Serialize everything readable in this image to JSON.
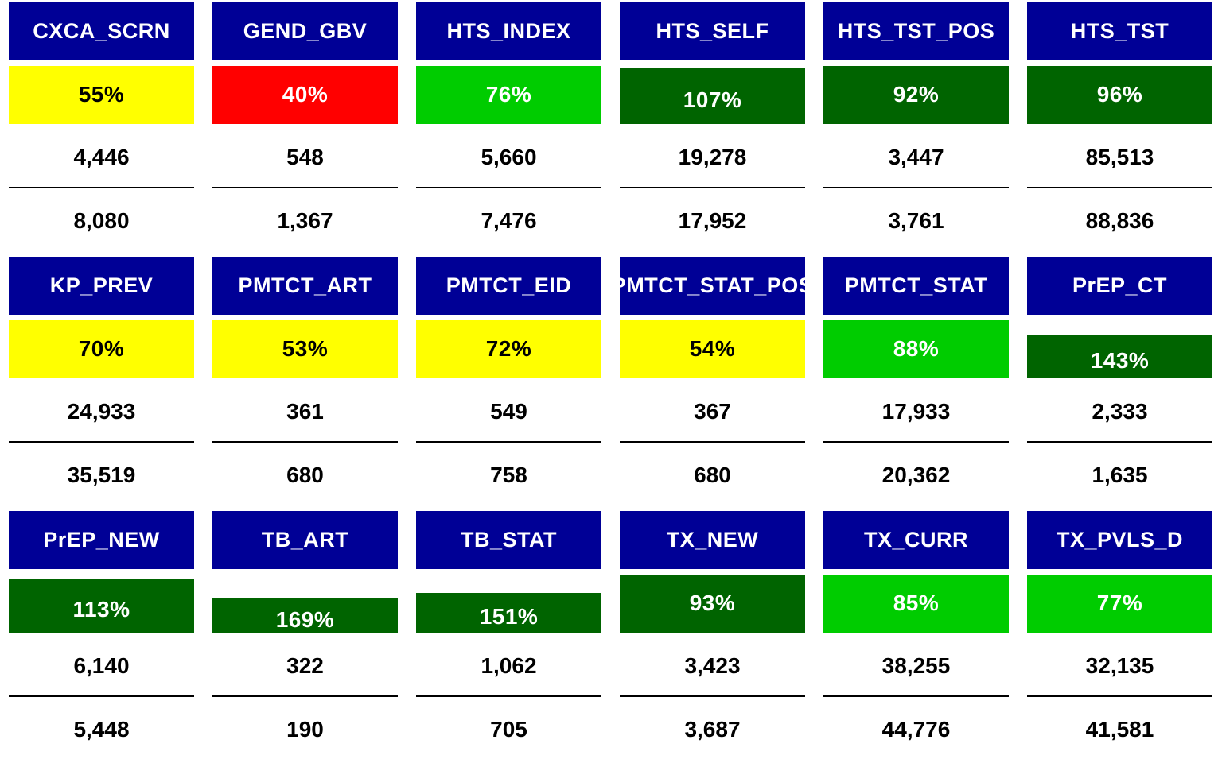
{
  "colors": {
    "header": "#000096",
    "yellow": "#ffff00",
    "red": "#ff0000",
    "light_green": "#00cc00",
    "dark_green": "#006400"
  },
  "chart_data": {
    "type": "table",
    "tiles": [
      {
        "indicator": "CXCA_SCRN",
        "achievement": "55%",
        "achievement_value": 55,
        "color": "yellow",
        "results": "4,446",
        "targets": "8,080"
      },
      {
        "indicator": "GEND_GBV",
        "achievement": "40%",
        "achievement_value": 40,
        "color": "red",
        "results": "548",
        "targets": "1,367"
      },
      {
        "indicator": "HTS_INDEX",
        "achievement": "76%",
        "achievement_value": 76,
        "color": "light_green",
        "results": "5,660",
        "targets": "7,476"
      },
      {
        "indicator": "HTS_SELF",
        "achievement": "107%",
        "achievement_value": 107,
        "color": "dark_green",
        "results": "19,278",
        "targets": "17,952"
      },
      {
        "indicator": "HTS_TST_POS",
        "achievement": "92%",
        "achievement_value": 92,
        "color": "dark_green",
        "results": "3,447",
        "targets": "3,761"
      },
      {
        "indicator": "HTS_TST",
        "achievement": "96%",
        "achievement_value": 96,
        "color": "dark_green",
        "results": "85,513",
        "targets": "88,836"
      },
      {
        "indicator": "KP_PREV",
        "achievement": "70%",
        "achievement_value": 70,
        "color": "yellow",
        "results": "24,933",
        "targets": "35,519"
      },
      {
        "indicator": "PMTCT_ART",
        "achievement": "53%",
        "achievement_value": 53,
        "color": "yellow",
        "results": "361",
        "targets": "680"
      },
      {
        "indicator": "PMTCT_EID",
        "achievement": "72%",
        "achievement_value": 72,
        "color": "yellow",
        "results": "549",
        "targets": "758"
      },
      {
        "indicator": "PMTCT_STAT_POS",
        "achievement": "54%",
        "achievement_value": 54,
        "color": "yellow",
        "results": "367",
        "targets": "680"
      },
      {
        "indicator": "PMTCT_STAT",
        "achievement": "88%",
        "achievement_value": 88,
        "color": "light_green",
        "results": "17,933",
        "targets": "20,362"
      },
      {
        "indicator": "PrEP_CT",
        "achievement": "143%",
        "achievement_value": 143,
        "color": "dark_green",
        "results": "2,333",
        "targets": "1,635"
      },
      {
        "indicator": "PrEP_NEW",
        "achievement": "113%",
        "achievement_value": 113,
        "color": "dark_green",
        "results": "6,140",
        "targets": "5,448"
      },
      {
        "indicator": "TB_ART",
        "achievement": "169%",
        "achievement_value": 169,
        "color": "dark_green",
        "results": "322",
        "targets": "190"
      },
      {
        "indicator": "TB_STAT",
        "achievement": "151%",
        "achievement_value": 151,
        "color": "dark_green",
        "results": "1,062",
        "targets": "705"
      },
      {
        "indicator": "TX_NEW",
        "achievement": "93%",
        "achievement_value": 93,
        "color": "dark_green",
        "results": "3,423",
        "targets": "3,687"
      },
      {
        "indicator": "TX_CURR",
        "achievement": "85%",
        "achievement_value": 85,
        "color": "light_green",
        "results": "38,255",
        "targets": "44,776"
      },
      {
        "indicator": "TX_PVLS_D",
        "achievement": "77%",
        "achievement_value": 77,
        "color": "light_green",
        "results": "32,135",
        "targets": "41,581"
      }
    ]
  }
}
